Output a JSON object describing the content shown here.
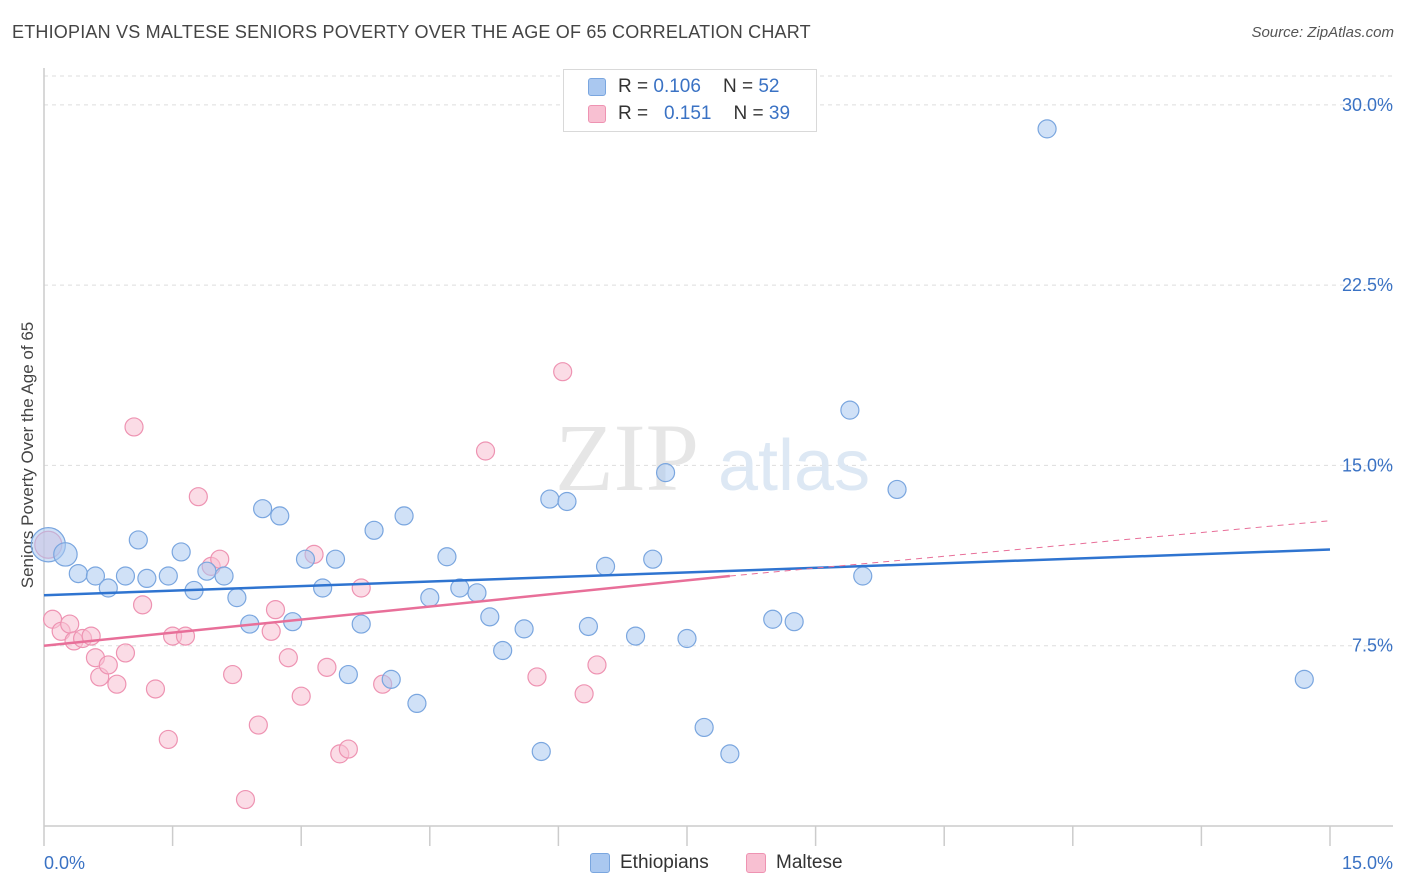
{
  "title": "ETHIOPIAN VS MALTESE SENIORS POVERTY OVER THE AGE OF 65 CORRELATION CHART",
  "source": "Source: ZipAtlas.com",
  "watermark": {
    "zip": "ZIP",
    "atlas": "atlas"
  },
  "legend": {
    "r_label": "R =",
    "n_label": "N =",
    "rows": [
      {
        "name": "Ethiopians",
        "r": "0.106",
        "n": "52"
      },
      {
        "name": "Maltese",
        "r": "0.151",
        "n": "39"
      }
    ]
  },
  "colors": {
    "ethiopians_fill": "#aac8f0",
    "ethiopians_stroke": "#7aa6df",
    "ethiopians_line": "#2f74d0",
    "maltese_fill": "#f8c0d2",
    "maltese_stroke": "#ee93b2",
    "maltese_line": "#e86f99",
    "axis_tick_text": "#3a72c4",
    "grid": "#dddddd"
  },
  "chart_data": {
    "type": "scatter",
    "ylabel": "Seniors Poverty Over the Age of 65",
    "xlim": [
      0,
      15
    ],
    "ylim": [
      0,
      31.2
    ],
    "y_ticks": [
      {
        "value": 7.5,
        "label": "7.5%"
      },
      {
        "value": 15,
        "label": "15.0%"
      },
      {
        "value": 22.5,
        "label": "22.5%"
      },
      {
        "value": 30,
        "label": "30.0%"
      }
    ],
    "x_tick_labels": {
      "left": "0.0%",
      "right": "15.0%"
    },
    "x_minor_ticks": [
      1.5,
      3,
      4.5,
      6,
      7.5,
      9,
      10.5,
      12,
      13.5,
      15
    ],
    "grid": true,
    "legend_position": "top-center",
    "series": [
      {
        "name": "Ethiopians",
        "trend": {
          "x0": 0,
          "y0": 9.6,
          "x1": 15,
          "y1": 11.5
        },
        "points": [
          [
            0.05,
            11.7,
            1.9
          ],
          [
            0.25,
            11.3,
            1.3
          ],
          [
            0.4,
            10.5,
            1
          ],
          [
            0.6,
            10.4,
            1
          ],
          [
            0.75,
            9.9,
            1
          ],
          [
            0.95,
            10.4,
            1
          ],
          [
            1.1,
            11.9,
            1
          ],
          [
            1.2,
            10.3,
            1
          ],
          [
            1.45,
            10.4,
            1
          ],
          [
            1.6,
            11.4,
            1
          ],
          [
            1.75,
            9.8,
            1
          ],
          [
            1.9,
            10.6,
            1
          ],
          [
            2.1,
            10.4,
            1
          ],
          [
            2.25,
            9.5,
            1
          ],
          [
            2.4,
            8.4,
            1
          ],
          [
            2.55,
            13.2,
            1
          ],
          [
            2.75,
            12.9,
            1
          ],
          [
            2.9,
            8.5,
            1
          ],
          [
            3.05,
            11.1,
            1
          ],
          [
            3.25,
            9.9,
            1
          ],
          [
            3.4,
            11.1,
            1
          ],
          [
            3.55,
            6.3,
            1
          ],
          [
            3.7,
            8.4,
            1
          ],
          [
            3.85,
            12.3,
            1
          ],
          [
            4.05,
            6.1,
            1
          ],
          [
            4.2,
            12.9,
            1
          ],
          [
            4.35,
            5.1,
            1
          ],
          [
            4.5,
            9.5,
            1
          ],
          [
            4.7,
            11.2,
            1
          ],
          [
            4.85,
            9.9,
            1
          ],
          [
            5.05,
            9.7,
            1
          ],
          [
            5.2,
            8.7,
            1
          ],
          [
            5.35,
            7.3,
            1
          ],
          [
            5.6,
            8.2,
            1
          ],
          [
            5.8,
            3.1,
            1
          ],
          [
            5.9,
            13.6,
            1
          ],
          [
            6.1,
            13.5,
            1
          ],
          [
            6.35,
            8.3,
            1
          ],
          [
            6.55,
            10.8,
            1
          ],
          [
            6.9,
            7.9,
            1
          ],
          [
            7.1,
            11.1,
            1
          ],
          [
            7.25,
            14.7,
            1
          ],
          [
            7.5,
            7.8,
            1
          ],
          [
            7.7,
            4.1,
            1
          ],
          [
            8.0,
            3.0,
            1
          ],
          [
            8.5,
            8.6,
            1
          ],
          [
            8.75,
            8.5,
            1
          ],
          [
            9.4,
            17.3,
            1
          ],
          [
            9.55,
            10.4,
            1
          ],
          [
            9.95,
            14.0,
            1
          ],
          [
            11.7,
            29.0,
            1
          ],
          [
            14.7,
            6.1,
            1
          ]
        ]
      },
      {
        "name": "Maltese",
        "trend": {
          "x0": 0,
          "y0": 7.5,
          "x1": 8,
          "y1": 10.4
        },
        "trend_dashed": {
          "x0": 8,
          "y0": 10.4,
          "x1": 15,
          "y1": 12.7
        },
        "points": [
          [
            0.05,
            11.7,
            1.5
          ],
          [
            0.1,
            8.6,
            1
          ],
          [
            0.2,
            8.1,
            1
          ],
          [
            0.3,
            8.4,
            1
          ],
          [
            0.35,
            7.7,
            1
          ],
          [
            0.45,
            7.8,
            1
          ],
          [
            0.55,
            7.9,
            1
          ],
          [
            0.6,
            7.0,
            1
          ],
          [
            0.65,
            6.2,
            1
          ],
          [
            0.75,
            6.7,
            1
          ],
          [
            0.85,
            5.9,
            1
          ],
          [
            0.95,
            7.2,
            1
          ],
          [
            1.05,
            16.6,
            1
          ],
          [
            1.15,
            9.2,
            1
          ],
          [
            1.3,
            5.7,
            1
          ],
          [
            1.45,
            3.6,
            1
          ],
          [
            1.5,
            7.9,
            1
          ],
          [
            1.65,
            7.9,
            1
          ],
          [
            1.8,
            13.7,
            1
          ],
          [
            1.95,
            10.8,
            1
          ],
          [
            2.05,
            11.1,
            1
          ],
          [
            2.2,
            6.3,
            1
          ],
          [
            2.35,
            1.1,
            1
          ],
          [
            2.5,
            4.2,
            1
          ],
          [
            2.65,
            8.1,
            1
          ],
          [
            2.7,
            9.0,
            1
          ],
          [
            2.85,
            7.0,
            1
          ],
          [
            3.0,
            5.4,
            1
          ],
          [
            3.15,
            11.3,
            1
          ],
          [
            3.3,
            6.6,
            1
          ],
          [
            3.45,
            3.0,
            1
          ],
          [
            3.55,
            3.2,
            1
          ],
          [
            3.7,
            9.9,
            1
          ],
          [
            3.95,
            5.9,
            1
          ],
          [
            5.15,
            15.6,
            1
          ],
          [
            5.75,
            6.2,
            1
          ],
          [
            6.05,
            18.9,
            1
          ],
          [
            6.3,
            5.5,
            1
          ],
          [
            6.45,
            6.7,
            1
          ]
        ]
      }
    ]
  }
}
